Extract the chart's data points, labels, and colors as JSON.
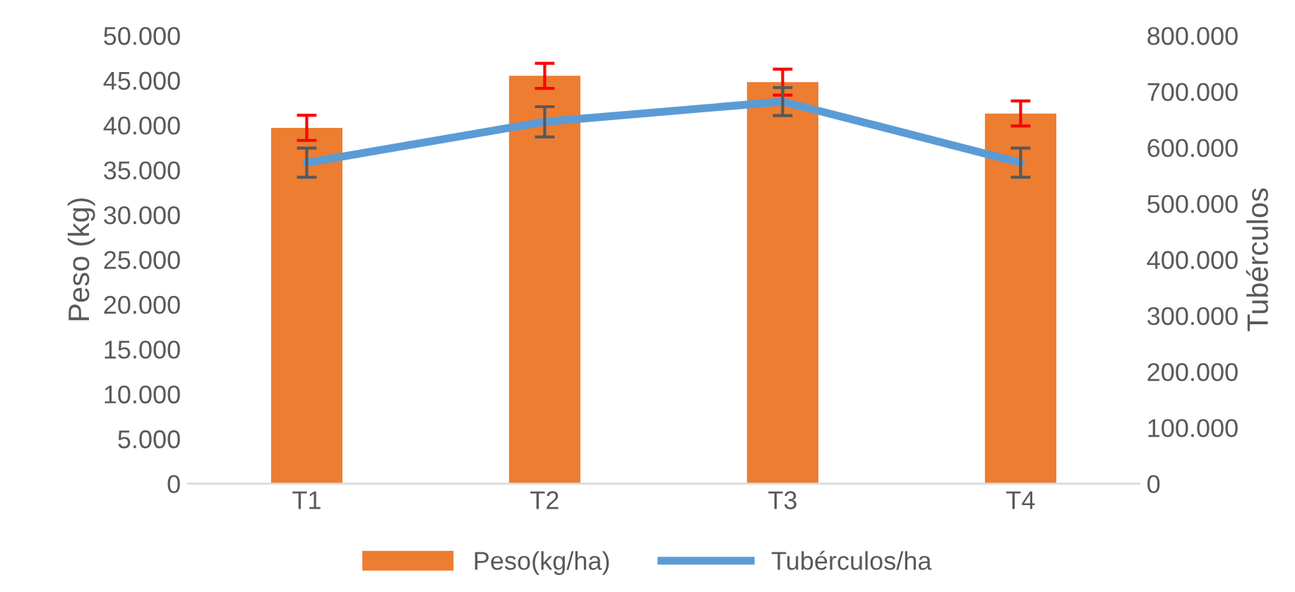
{
  "chart_data": {
    "type": "bar",
    "ylabel": "Peso (kg)",
    "y2label": "Tubérculos",
    "categories": [
      "T1",
      "T2",
      "T3",
      "T4"
    ],
    "series": [
      {
        "name": "Peso(kg/ha)",
        "color": "#ed7d31",
        "values": [
          39700,
          45500,
          44800,
          41300
        ],
        "errors": [
          1400,
          1400,
          1450,
          1400
        ]
      },
      {
        "name": "Tubérculos/ha",
        "type": "line",
        "axis": "y2",
        "color": "#5b9bd5",
        "values": [
          573000,
          646000,
          682000,
          573000
        ],
        "errors": [
          26000,
          27000,
          25000,
          26000
        ]
      }
    ],
    "ylim": [
      0,
      50000
    ],
    "yticks": [
      0,
      {
        "value": 5000,
        "label": "5.000"
      },
      {
        "value": 10000,
        "label": "10.000"
      },
      {
        "value": 15000,
        "label": "15.000"
      },
      {
        "value": 20000,
        "label": "20.000"
      },
      {
        "value": 25000,
        "label": "25.000"
      },
      {
        "value": 30000,
        "label": "30.000"
      },
      {
        "value": 35000,
        "label": "35.000"
      },
      {
        "value": 40000,
        "label": "40.000"
      },
      {
        "value": 45000,
        "label": "45.000"
      },
      {
        "value": 50000,
        "label": "50.000"
      }
    ],
    "y2lim": [
      0,
      800000
    ],
    "y2ticks": [
      0,
      {
        "value": 100000,
        "label": "100.000"
      },
      {
        "value": 200000,
        "label": "200.000"
      },
      {
        "value": 300000,
        "label": "300.000"
      },
      {
        "value": 400000,
        "label": "400.000"
      },
      {
        "value": 500000,
        "label": "500.000"
      },
      {
        "value": 600000,
        "label": "600.000"
      },
      {
        "value": 700000,
        "label": "700.000"
      },
      {
        "value": 800000,
        "label": "800.000"
      }
    ],
    "legend": "bottom",
    "marker": "none",
    "line_style": "solid"
  }
}
